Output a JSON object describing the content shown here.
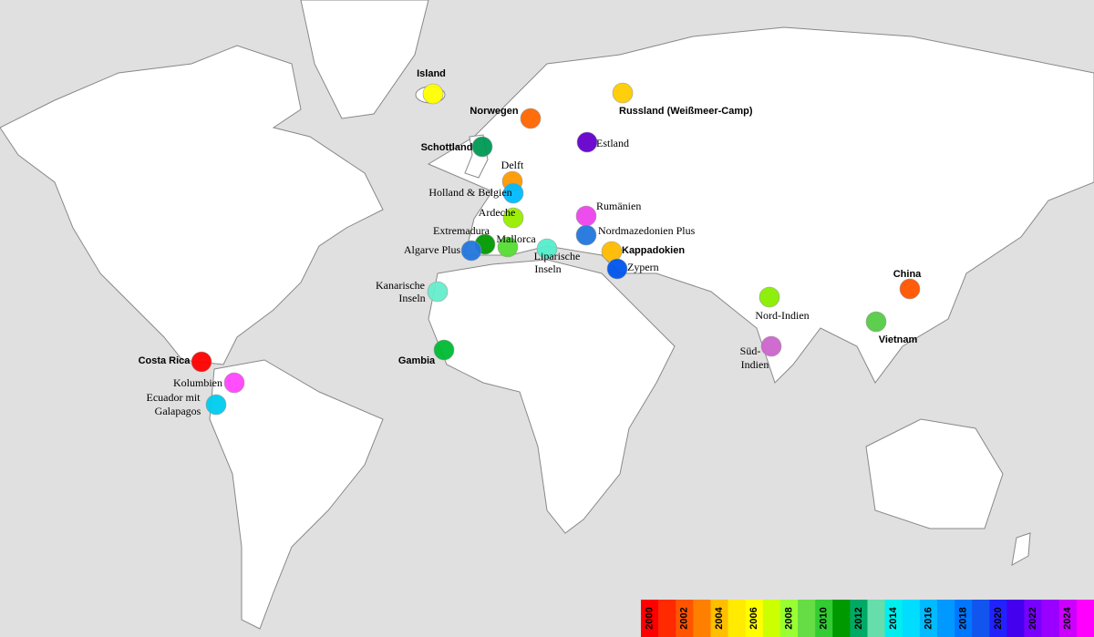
{
  "markers": [
    {
      "label": [
        "Island"
      ],
      "color": "#ffff00"
    },
    {
      "label": [
        "Norwegen"
      ],
      "color": "#ff6600"
    },
    {
      "label": [
        "Russland (Weißmeer-Camp)"
      ],
      "color": "#ffcc00"
    },
    {
      "label": [
        "Schottland"
      ],
      "color": "#009955"
    },
    {
      "label": [
        "Estland"
      ],
      "color": "#6600cc"
    },
    {
      "label": [
        "Delft"
      ],
      "color": "#ff9900"
    },
    {
      "label": [
        "Holland & Belgien"
      ],
      "color": "#00bbff"
    },
    {
      "label": [
        "Ardeche"
      ],
      "color": "#99ee00"
    },
    {
      "label": [
        "Rumänien"
      ],
      "color": "#ee44ee"
    },
    {
      "label": [
        "Extremadura"
      ],
      "color": "#009900"
    },
    {
      "label": [
        "Mallorca"
      ],
      "color": "#55dd33"
    },
    {
      "label": [
        "Algarve Plus"
      ],
      "color": "#2277dd"
    },
    {
      "label": [
        "Nordmazedonien Plus"
      ],
      "color": "#2277dd"
    },
    {
      "label": [
        "Liparische",
        "Inseln"
      ],
      "color": "#55eecc"
    },
    {
      "label": [
        "Kappadokien"
      ],
      "color": "#ffbb00"
    },
    {
      "label": [
        "Zypern"
      ],
      "color": "#0055ee"
    },
    {
      "label": [
        "Kanarische",
        "Inseln"
      ],
      "color": "#66eecc"
    },
    {
      "label": [
        "China"
      ],
      "color": "#ff5500"
    },
    {
      "label": [
        "Nord-Indien"
      ],
      "color": "#88ee00"
    },
    {
      "label": [
        "Vietnam"
      ],
      "color": "#55cc44"
    },
    {
      "label": [
        "Süd-",
        "Indien"
      ],
      "color": "#cc66cc"
    },
    {
      "label": [
        "Costa Rica"
      ],
      "color": "#ff0000"
    },
    {
      "label": [
        "Kolumbien"
      ],
      "color": "#ff44ff"
    },
    {
      "label": [
        "Ecuador mit",
        "Galapagos"
      ],
      "color": "#00ccee"
    },
    {
      "label": [
        "Gambia"
      ],
      "color": "#00bb33"
    }
  ],
  "legend": {
    "labels": [
      "2000",
      null,
      "2002",
      null,
      "2004",
      null,
      "2006",
      null,
      "2008",
      null,
      "2010",
      null,
      "2012",
      null,
      "2014",
      null,
      "2016",
      null,
      "2018",
      null,
      "2020",
      null,
      "2022",
      null,
      "2024",
      null
    ],
    "colors": [
      "#ff0000",
      "#ff2a00",
      "#ff5500",
      "#ff8000",
      "#ffbf00",
      "#ffea00",
      "#ffff00",
      "#ccff00",
      "#99ff33",
      "#66dd44",
      "#33cc33",
      "#009900",
      "#00aa66",
      "#66ddaa",
      "#00eeee",
      "#00ddff",
      "#00bbff",
      "#0099ff",
      "#0077ff",
      "#1155ee",
      "#2222ff",
      "#4400ee",
      "#7700ff",
      "#9900ff",
      "#cc00ff",
      "#ff00ff"
    ]
  }
}
